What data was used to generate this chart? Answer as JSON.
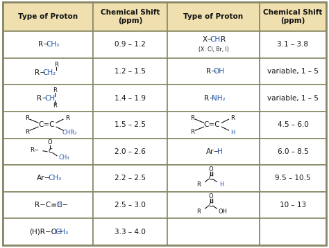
{
  "header_bg": "#f0e0b0",
  "cell_bg": "#ffffff",
  "border_color": "#888866",
  "blue": "#2255aa",
  "black": "#111111",
  "fig_bg": "#ffffff",
  "headers": [
    "Type of Proton",
    "Chemical Shift\n(ppm)",
    "Type of Proton",
    "Chemical Shift\n(ppm)"
  ],
  "left_shifts": [
    "0.9 – 1.2",
    "1.2 – 1.5",
    "1.4 – 1.9",
    "1.5 – 2.5",
    "2.0 – 2.6",
    "2.2 – 2.5",
    "2.5 – 3.0",
    "3.3 – 4.0"
  ],
  "right_shifts": [
    "3.1 – 3.8",
    "variable, 1 – 5",
    "variable, 1 – 5",
    "4.5 – 6.0",
    "6.0 – 8.5",
    "9.5 – 10.5",
    "10 – 13"
  ]
}
